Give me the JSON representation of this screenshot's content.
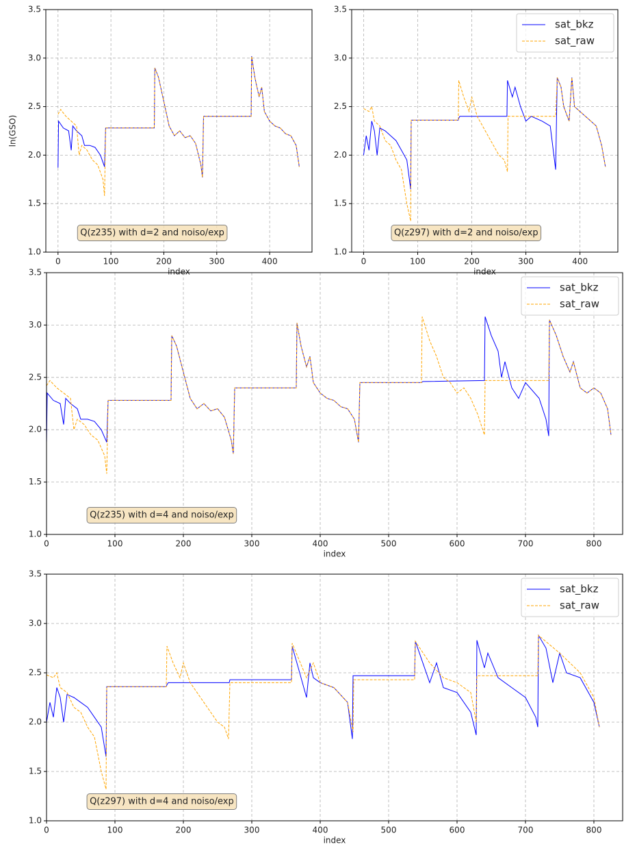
{
  "chart_data": [
    {
      "type": "line",
      "annotation": "Q(z235) with d=2 and noiso/exp",
      "xlabel": "index",
      "ylabel": "ln(GSO)",
      "xlim": [
        -23,
        480
      ],
      "ylim": [
        1,
        3.5
      ],
      "xticks": [
        0,
        100,
        200,
        300,
        400
      ],
      "yticks": [
        {
          "value": 1,
          "label": "1.0"
        },
        {
          "value": 1.5,
          "label": "1.5"
        },
        {
          "value": 2,
          "label": "2.0"
        },
        {
          "value": 2.5,
          "label": "2.5"
        },
        {
          "value": 3,
          "label": "3.0"
        },
        {
          "value": 3.5,
          "label": "3.5"
        }
      ],
      "grid": true,
      "series": [
        {
          "name": "sat_bkz",
          "color": "#0000ff",
          "style": "solid",
          "x": [
            0,
            1,
            10,
            20,
            25,
            28,
            35,
            45,
            50,
            60,
            70,
            80,
            88,
            90,
            182,
            183,
            190,
            200,
            210,
            220,
            230,
            240,
            250,
            260,
            270,
            273,
            275,
            365,
            366,
            372,
            380,
            385,
            390,
            400,
            410,
            420,
            430,
            440,
            450,
            456
          ],
          "values": [
            1.87,
            2.35,
            2.28,
            2.25,
            2.05,
            2.3,
            2.25,
            2.2,
            2.1,
            2.1,
            2.08,
            2.0,
            1.88,
            2.28,
            2.28,
            2.9,
            2.8,
            2.55,
            2.3,
            2.2,
            2.25,
            2.18,
            2.2,
            2.12,
            1.9,
            1.77,
            2.4,
            2.4,
            3.02,
            2.8,
            2.6,
            2.7,
            2.45,
            2.35,
            2.3,
            2.28,
            2.22,
            2.2,
            2.1,
            1.88
          ]
        },
        {
          "name": "sat_raw",
          "color": "#ffa500",
          "style": "dashed",
          "x": [
            0,
            5,
            15,
            25,
            35,
            40,
            45,
            55,
            65,
            75,
            85,
            88,
            90,
            182,
            183,
            190,
            200,
            210,
            220,
            230,
            240,
            250,
            260,
            270,
            273,
            275,
            365,
            366,
            372,
            380,
            385,
            390,
            400,
            410,
            420,
            430,
            440,
            450,
            456
          ],
          "values": [
            2.42,
            2.47,
            2.4,
            2.35,
            2.3,
            2.0,
            2.1,
            2.05,
            1.95,
            1.9,
            1.75,
            1.58,
            2.28,
            2.28,
            2.9,
            2.8,
            2.55,
            2.3,
            2.2,
            2.25,
            2.18,
            2.2,
            2.12,
            1.9,
            1.77,
            2.4,
            2.4,
            3.02,
            2.8,
            2.6,
            2.7,
            2.45,
            2.35,
            2.3,
            2.28,
            2.22,
            2.2,
            2.1,
            1.88
          ]
        }
      ]
    },
    {
      "type": "line",
      "annotation": "Q(z297) with d=2 and noiso/exp",
      "xlabel": "index",
      "legend": "upper right",
      "xlim": [
        -22,
        470
      ],
      "ylim": [
        1,
        3.5
      ],
      "xticks": [
        0,
        100,
        200,
        300,
        400
      ],
      "yticks": [
        {
          "value": 1,
          "label": "1.0"
        },
        {
          "value": 1.5,
          "label": "1.5"
        },
        {
          "value": 2,
          "label": "2.0"
        },
        {
          "value": 2.5,
          "label": "2.5"
        },
        {
          "value": 3,
          "label": "3.0"
        },
        {
          "value": 3.5,
          "label": "3.5"
        }
      ],
      "grid": true,
      "series": [
        {
          "name": "sat_bkz",
          "color": "#0000ff",
          "style": "solid",
          "x": [
            0,
            5,
            10,
            15,
            20,
            25,
            30,
            40,
            50,
            60,
            70,
            80,
            87,
            88,
            175,
            176,
            178,
            265,
            266,
            275,
            280,
            290,
            300,
            310,
            330,
            345,
            355,
            358,
            365,
            370,
            380,
            385,
            390,
            400,
            410,
            420,
            430,
            440,
            447
          ],
          "values": [
            2.0,
            2.2,
            2.05,
            2.35,
            2.25,
            2.0,
            2.28,
            2.25,
            2.2,
            2.15,
            2.05,
            1.95,
            1.65,
            2.36,
            2.36,
            2.38,
            2.4,
            2.4,
            2.77,
            2.6,
            2.7,
            2.5,
            2.35,
            2.4,
            2.35,
            2.3,
            1.85,
            2.8,
            2.7,
            2.5,
            2.35,
            2.8,
            2.5,
            2.45,
            2.4,
            2.35,
            2.3,
            2.1,
            1.88
          ]
        },
        {
          "name": "sat_raw",
          "color": "#ffa500",
          "style": "dashed",
          "x": [
            0,
            10,
            15,
            20,
            30,
            40,
            50,
            60,
            70,
            80,
            87,
            88,
            175,
            176,
            185,
            195,
            200,
            210,
            220,
            230,
            240,
            250,
            260,
            266,
            267,
            355,
            358,
            365,
            370,
            380,
            385,
            390,
            400,
            410,
            420,
            430,
            440,
            447
          ],
          "values": [
            2.48,
            2.45,
            2.5,
            2.35,
            2.3,
            2.15,
            2.1,
            1.95,
            1.85,
            1.5,
            1.32,
            2.36,
            2.36,
            2.77,
            2.6,
            2.45,
            2.6,
            2.4,
            2.3,
            2.2,
            2.1,
            2.0,
            1.95,
            1.83,
            2.4,
            2.4,
            2.8,
            2.7,
            2.5,
            2.35,
            2.8,
            2.5,
            2.45,
            2.4,
            2.35,
            2.3,
            2.1,
            1.88
          ]
        }
      ]
    },
    {
      "type": "line",
      "annotation": "Q(z235) with d=4 and noiso/exp",
      "xlabel": "index",
      "legend": "upper right",
      "xlim": [
        0,
        842
      ],
      "ylim": [
        1,
        3.5
      ],
      "xticks": [
        0,
        100,
        200,
        300,
        400,
        500,
        600,
        700,
        800
      ],
      "yticks": [
        {
          "value": 1,
          "label": "1.0"
        },
        {
          "value": 1.5,
          "label": "1.5"
        },
        {
          "value": 2,
          "label": "2.0"
        },
        {
          "value": 2.5,
          "label": "2.5"
        },
        {
          "value": 3,
          "label": "3.0"
        },
        {
          "value": 3.5,
          "label": "3.5"
        }
      ],
      "grid": true,
      "series": [
        {
          "name": "sat_bkz",
          "color": "#0000ff",
          "style": "solid",
          "x": [
            0,
            1,
            10,
            20,
            25,
            28,
            35,
            45,
            50,
            60,
            70,
            80,
            88,
            90,
            182,
            183,
            190,
            200,
            210,
            220,
            230,
            240,
            250,
            260,
            270,
            273,
            275,
            365,
            366,
            372,
            380,
            385,
            390,
            400,
            410,
            420,
            430,
            440,
            450,
            456,
            458,
            548,
            550,
            640,
            641,
            650,
            660,
            665,
            670,
            680,
            690,
            700,
            720,
            730,
            734,
            735,
            745,
            755,
            765,
            770,
            780,
            790,
            800,
            810,
            820,
            825
          ],
          "values": [
            1.87,
            2.35,
            2.28,
            2.25,
            2.05,
            2.3,
            2.25,
            2.2,
            2.1,
            2.1,
            2.08,
            2.0,
            1.88,
            2.28,
            2.28,
            2.9,
            2.8,
            2.55,
            2.3,
            2.2,
            2.25,
            2.18,
            2.2,
            2.12,
            1.9,
            1.77,
            2.4,
            2.4,
            3.02,
            2.8,
            2.6,
            2.7,
            2.45,
            2.35,
            2.3,
            2.28,
            2.22,
            2.2,
            2.1,
            1.88,
            2.45,
            2.45,
            2.46,
            2.47,
            3.08,
            2.9,
            2.75,
            2.5,
            2.65,
            2.4,
            2.3,
            2.45,
            2.3,
            2.1,
            1.94,
            3.05,
            2.9,
            2.7,
            2.55,
            2.65,
            2.4,
            2.35,
            2.4,
            2.35,
            2.2,
            1.95
          ]
        },
        {
          "name": "sat_raw",
          "color": "#ffa500",
          "style": "dashed",
          "x": [
            0,
            5,
            15,
            25,
            35,
            40,
            45,
            55,
            65,
            75,
            85,
            88,
            90,
            182,
            183,
            190,
            200,
            210,
            220,
            230,
            240,
            250,
            260,
            270,
            273,
            275,
            365,
            366,
            372,
            380,
            385,
            390,
            400,
            410,
            420,
            430,
            440,
            450,
            456,
            458,
            548,
            549,
            560,
            570,
            580,
            590,
            600,
            610,
            620,
            630,
            640,
            641,
            734,
            735,
            745,
            755,
            765,
            770,
            780,
            790,
            800,
            810,
            820,
            825
          ],
          "values": [
            2.42,
            2.47,
            2.4,
            2.35,
            2.3,
            2.0,
            2.1,
            2.05,
            1.95,
            1.9,
            1.75,
            1.58,
            2.28,
            2.28,
            2.9,
            2.8,
            2.55,
            2.3,
            2.2,
            2.25,
            2.18,
            2.2,
            2.12,
            1.9,
            1.77,
            2.4,
            2.4,
            3.02,
            2.8,
            2.6,
            2.7,
            2.45,
            2.35,
            2.3,
            2.28,
            2.22,
            2.2,
            2.1,
            1.88,
            2.45,
            2.45,
            3.08,
            2.85,
            2.7,
            2.5,
            2.45,
            2.35,
            2.4,
            2.3,
            2.15,
            1.95,
            2.47,
            2.47,
            3.05,
            2.9,
            2.7,
            2.55,
            2.65,
            2.4,
            2.35,
            2.4,
            2.35,
            2.2,
            1.95
          ]
        }
      ]
    },
    {
      "type": "line",
      "annotation": "Q(z297) with d=4 and noiso/exp",
      "xlabel": "index",
      "legend": "upper right",
      "xlim": [
        0,
        842
      ],
      "ylim": [
        1,
        3.5
      ],
      "xticks": [
        0,
        100,
        200,
        300,
        400,
        500,
        600,
        700,
        800
      ],
      "yticks": [
        {
          "value": 1,
          "label": "1.0"
        },
        {
          "value": 1.5,
          "label": "1.5"
        },
        {
          "value": 2,
          "label": "2.0"
        },
        {
          "value": 2.5,
          "label": "2.5"
        },
        {
          "value": 3,
          "label": "3.0"
        },
        {
          "value": 3.5,
          "label": "3.5"
        }
      ],
      "grid": true,
      "series": [
        {
          "name": "sat_bkz",
          "color": "#0000ff",
          "style": "solid",
          "x": [
            0,
            5,
            10,
            15,
            20,
            25,
            30,
            40,
            50,
            60,
            70,
            80,
            87,
            88,
            175,
            176,
            178,
            267,
            268,
            358,
            359,
            370,
            380,
            385,
            390,
            400,
            420,
            440,
            447,
            448,
            538,
            539,
            550,
            560,
            570,
            580,
            600,
            620,
            628,
            629,
            640,
            645,
            660,
            680,
            700,
            715,
            718,
            719,
            730,
            740,
            750,
            760,
            780,
            800,
            808
          ],
          "values": [
            2.0,
            2.2,
            2.05,
            2.35,
            2.25,
            2.0,
            2.28,
            2.25,
            2.2,
            2.15,
            2.05,
            1.95,
            1.65,
            2.36,
            2.36,
            2.38,
            2.4,
            2.4,
            2.43,
            2.43,
            2.77,
            2.5,
            2.25,
            2.6,
            2.45,
            2.4,
            2.35,
            2.2,
            1.83,
            2.47,
            2.47,
            2.82,
            2.6,
            2.4,
            2.6,
            2.35,
            2.3,
            2.1,
            1.87,
            2.83,
            2.55,
            2.7,
            2.45,
            2.35,
            2.25,
            2.05,
            1.95,
            2.88,
            2.75,
            2.4,
            2.7,
            2.5,
            2.45,
            2.2,
            1.95
          ]
        },
        {
          "name": "sat_raw",
          "color": "#ffa500",
          "style": "dashed",
          "x": [
            0,
            10,
            15,
            20,
            30,
            40,
            50,
            60,
            70,
            80,
            87,
            88,
            175,
            176,
            185,
            195,
            200,
            210,
            220,
            230,
            240,
            250,
            260,
            266,
            268,
            358,
            359,
            380,
            390,
            400,
            420,
            440,
            448,
            449,
            538,
            539,
            560,
            580,
            600,
            620,
            628,
            629,
            718,
            719,
            750,
            780,
            800,
            808
          ],
          "values": [
            2.48,
            2.45,
            2.5,
            2.35,
            2.3,
            2.15,
            2.1,
            1.95,
            1.85,
            1.5,
            1.32,
            2.36,
            2.36,
            2.77,
            2.6,
            2.45,
            2.6,
            2.4,
            2.3,
            2.2,
            2.1,
            2.0,
            1.95,
            1.83,
            2.4,
            2.4,
            2.8,
            2.45,
            2.6,
            2.4,
            2.35,
            2.2,
            1.9,
            2.43,
            2.43,
            2.82,
            2.6,
            2.45,
            2.4,
            2.3,
            2.0,
            2.47,
            2.47,
            2.88,
            2.7,
            2.5,
            2.25,
            1.95
          ]
        }
      ]
    }
  ]
}
